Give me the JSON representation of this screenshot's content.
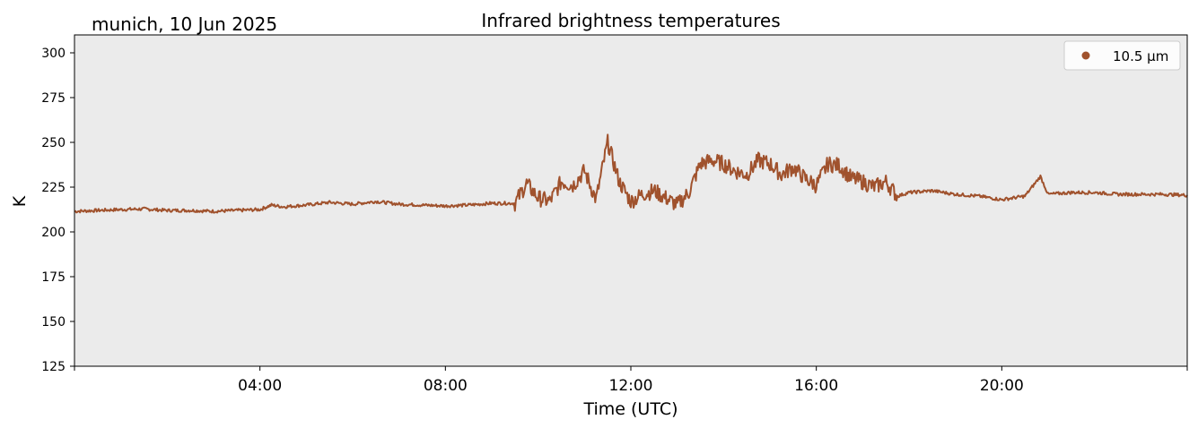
{
  "location_date": "munich, 10 Jun 2025",
  "chart_data": {
    "type": "line",
    "title": "Infrared brightness temperatures",
    "xlabel": "Time (UTC)",
    "ylabel": "K",
    "xlim": [
      "00:00",
      "24:00"
    ],
    "ylim": [
      125,
      310
    ],
    "x_tick_labels": [
      "04:00",
      "08:00",
      "12:00",
      "16:00",
      "20:00"
    ],
    "y_ticks": [
      125,
      150,
      175,
      200,
      225,
      250,
      275,
      300
    ],
    "grid": false,
    "background_color": "#ebebeb",
    "legend_position": "top-right",
    "series": [
      {
        "name": "10.5 µm",
        "color": "#a0522d",
        "x": [
          "00:00",
          "00:30",
          "01:00",
          "01:30",
          "02:00",
          "02:30",
          "03:00",
          "03:30",
          "04:00",
          "04:15",
          "04:30",
          "05:00",
          "05:30",
          "06:00",
          "06:30",
          "07:00",
          "07:30",
          "08:00",
          "08:30",
          "09:00",
          "09:30",
          "09:45",
          "10:00",
          "10:15",
          "10:30",
          "10:45",
          "11:00",
          "11:15",
          "11:30",
          "11:45",
          "12:00",
          "12:15",
          "12:30",
          "12:45",
          "13:00",
          "13:15",
          "13:30",
          "13:45",
          "14:00",
          "14:15",
          "14:30",
          "14:45",
          "15:00",
          "15:15",
          "15:30",
          "15:45",
          "16:00",
          "16:15",
          "16:30",
          "16:45",
          "17:00",
          "17:15",
          "17:30",
          "17:45",
          "18:00",
          "18:30",
          "19:00",
          "19:30",
          "20:00",
          "20:30",
          "20:50",
          "21:00",
          "21:30",
          "22:00",
          "22:30",
          "23:00",
          "23:30",
          "24:00"
        ],
        "y": [
          211.5,
          212,
          212.5,
          212.8,
          212,
          212,
          211.5,
          212,
          212.5,
          215,
          214,
          215,
          216.5,
          215.5,
          217,
          215.5,
          215,
          214.5,
          215,
          216,
          216,
          227,
          219,
          217,
          228,
          226,
          234,
          218,
          250,
          228,
          217,
          221,
          223,
          219,
          215,
          222,
          238,
          240,
          238,
          234,
          232,
          240,
          238,
          232,
          236,
          230,
          226,
          238,
          237,
          230,
          228,
          225,
          228,
          220,
          222,
          223,
          221,
          220,
          218,
          220,
          231,
          221,
          222,
          222,
          221,
          221,
          221,
          220.5
        ]
      }
    ]
  }
}
